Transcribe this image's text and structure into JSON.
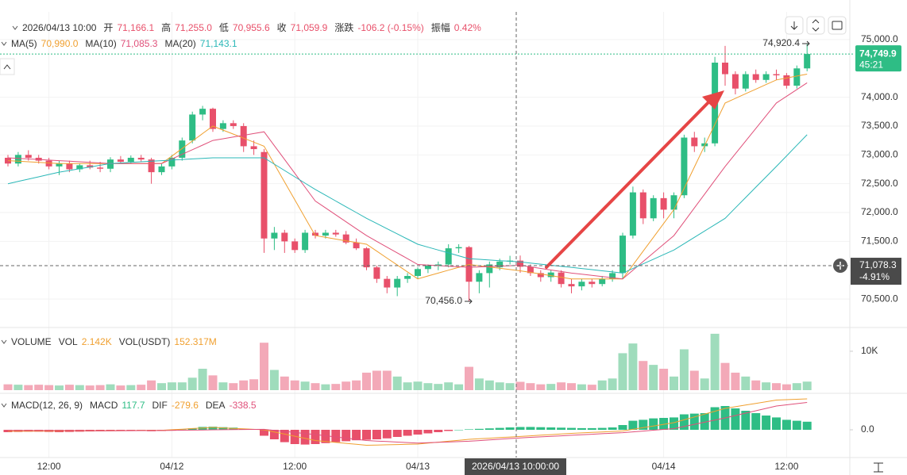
{
  "header": {
    "time": "2026/04/13 10:00",
    "items": [
      {
        "label": "开",
        "value": "71,166.1"
      },
      {
        "label": "高",
        "value": "71,255.0"
      },
      {
        "label": "低",
        "value": "70,955.6"
      },
      {
        "label": "收",
        "value": "71,059.9"
      },
      {
        "label": "涨跌",
        "value": "-106.2 (-0.15%)"
      },
      {
        "label": "振幅",
        "value": "0.42%"
      }
    ]
  },
  "chart_data": [
    {
      "type": "candlestick",
      "categories": [
        null,
        null,
        null,
        null,
        "12:00",
        null,
        null,
        null,
        null,
        null,
        null,
        null,
        null,
        null,
        null,
        null,
        "04/12",
        null,
        null,
        null,
        null,
        null,
        null,
        null,
        null,
        null,
        null,
        null,
        "12:00",
        null,
        null,
        null,
        null,
        null,
        null,
        null,
        null,
        null,
        null,
        null,
        "04/13",
        null,
        null,
        null,
        null,
        null,
        null,
        null,
        null,
        null,
        null,
        null,
        null,
        null,
        null,
        null,
        null,
        null,
        null,
        null,
        null,
        null,
        null,
        null,
        "04/14",
        null,
        null,
        null,
        null,
        null,
        null,
        null,
        null,
        null,
        null,
        null,
        "12:00",
        null,
        null
      ],
      "open": [
        72950,
        72850,
        73000,
        72950,
        72900,
        72800,
        72850,
        72750,
        72820,
        72780,
        72760,
        72920,
        72880,
        72950,
        72920,
        72700,
        72800,
        72950,
        73250,
        73700,
        73800,
        73450,
        73550,
        73500,
        73150,
        73050,
        71550,
        71650,
        71500,
        71350,
        71650,
        71600,
        71650,
        71620,
        71480,
        71380,
        71050,
        70850,
        70700,
        70850,
        70900,
        71020,
        71080,
        71100,
        71380,
        71400,
        70800,
        70950,
        71050,
        71150,
        71166.1,
        71060,
        70950,
        70880,
        70960,
        70760,
        70720,
        70800,
        70760,
        70850,
        70950,
        71600,
        72350,
        71900,
        72250,
        72050,
        72300,
        73300,
        73150,
        73200,
        74600,
        74400,
        74150,
        74400,
        74300,
        74400,
        74380,
        74200,
        74500
      ],
      "high": [
        73000,
        73050,
        73080,
        73000,
        72950,
        72900,
        72900,
        72850,
        72900,
        72880,
        72960,
        72980,
        72990,
        73000,
        72950,
        72850,
        73000,
        73300,
        73750,
        73850,
        73820,
        73600,
        73600,
        73550,
        73250,
        73100,
        71750,
        71700,
        71550,
        71700,
        71700,
        71700,
        71700,
        71680,
        71550,
        71400,
        71080,
        70900,
        70900,
        70950,
        71050,
        71100,
        71150,
        71450,
        71450,
        71420,
        71000,
        71150,
        71200,
        71250,
        71255,
        71100,
        71000,
        71000,
        71000,
        70850,
        70850,
        70850,
        70900,
        71000,
        71650,
        72450,
        72400,
        72300,
        72350,
        72350,
        73350,
        73400,
        73300,
        74700,
        74890,
        74450,
        74450,
        74480,
        74450,
        74480,
        74420,
        74550,
        74920.4
      ],
      "low": [
        72800,
        72800,
        72900,
        72850,
        72750,
        72650,
        72700,
        72700,
        72750,
        72700,
        72700,
        72850,
        72850,
        72880,
        72500,
        72650,
        72750,
        72900,
        73200,
        73600,
        73400,
        73400,
        73450,
        73050,
        73000,
        71300,
        71350,
        71300,
        71300,
        71300,
        71550,
        71550,
        71580,
        71450,
        71350,
        71000,
        70780,
        70600,
        70550,
        70780,
        70850,
        70950,
        71000,
        71050,
        71300,
        70456,
        70600,
        70700,
        71000,
        71100,
        70955.6,
        70900,
        70800,
        70800,
        70700,
        70600,
        70650,
        70700,
        70720,
        70800,
        70850,
        71550,
        71800,
        71850,
        71900,
        71900,
        72250,
        73050,
        73050,
        73150,
        74200,
        74050,
        74100,
        74250,
        74250,
        74300,
        74150,
        74150,
        74450
      ],
      "close": [
        72850,
        73000,
        72950,
        72900,
        72800,
        72850,
        72750,
        72820,
        72780,
        72760,
        72920,
        72880,
        72950,
        72920,
        72700,
        72800,
        72950,
        73250,
        73700,
        73800,
        73450,
        73550,
        73500,
        73150,
        73100,
        71550,
        71650,
        71500,
        71350,
        71650,
        71600,
        71650,
        71620,
        71480,
        71380,
        71050,
        70850,
        70700,
        70850,
        70900,
        71020,
        71080,
        71100,
        71380,
        71400,
        70800,
        70950,
        71100,
        71150,
        71166.1,
        71059.9,
        70950,
        70880,
        70960,
        70760,
        70720,
        70800,
        70760,
        70850,
        70950,
        71600,
        72350,
        71900,
        72250,
        72050,
        72300,
        73300,
        73150,
        73200,
        74600,
        74400,
        74150,
        74400,
        74300,
        74400,
        74380,
        74200,
        74500,
        74749.9
      ],
      "up_color": "#2ebd85",
      "down_color": "#e8506a",
      "lines": [
        {
          "name": "MA(5)",
          "value_label": "70,990.0",
          "color": "#f0a030",
          "values": [
            72900,
            72890,
            72880,
            72870,
            72860,
            72850,
            72850,
            72850,
            72850,
            72850,
            72850,
            72850,
            72850,
            72850,
            72850,
            72850,
            72980,
            73110,
            73240,
            73370,
            73500,
            73430,
            73360,
            73290,
            73220,
            73150,
            72840,
            72530,
            72220,
            71910,
            71600,
            71570,
            71540,
            71510,
            71480,
            71450,
            71330,
            71210,
            71090,
            70970,
            70850,
            70900,
            70950,
            71000,
            71050,
            71100,
            71078,
            71056,
            71034,
            71012,
            70990,
            70962,
            70934,
            70906,
            70878,
            70850,
            70850,
            70850,
            70850,
            70850,
            70850,
            71090,
            71330,
            71570,
            71810,
            72050,
            72420,
            72790,
            73160,
            73530,
            73900,
            73980,
            74060,
            74140,
            74220,
            74300,
            74333,
            74367,
            74400
          ]
        },
        {
          "name": "MA(10)",
          "value_label": "71,085.3",
          "color": "#e0507a",
          "values": [
            72950,
            72940,
            72930,
            72920,
            72910,
            72900,
            72890,
            72880,
            72870,
            72860,
            72850,
            72850,
            72850,
            72850,
            72850,
            72850,
            72930,
            73010,
            73090,
            73170,
            73250,
            73280,
            73310,
            73340,
            73370,
            73400,
            73160,
            72920,
            72680,
            72440,
            72200,
            72080,
            71960,
            71840,
            71720,
            71600,
            71500,
            71400,
            71300,
            71200,
            71100,
            71090,
            71080,
            71070,
            71060,
            71050,
            71057,
            71064,
            71071,
            71078,
            71085.3,
            71058,
            71031,
            71004,
            70977,
            70950,
            70930,
            70910,
            70890,
            70870,
            70850,
            71000,
            71150,
            71300,
            71450,
            71600,
            71840,
            72080,
            72320,
            72560,
            72800,
            73020,
            73240,
            73460,
            73680,
            73900,
            74017,
            74133,
            74250
          ]
        },
        {
          "name": "MA(20)",
          "value_label": "71,143.1",
          "color": "#2ab7b7",
          "values": [
            72500,
            72540,
            72580,
            72620,
            72660,
            72700,
            72730,
            72760,
            72790,
            72820,
            72850,
            72860,
            72870,
            72880,
            72890,
            72900,
            72910,
            72920,
            72930,
            72940,
            72950,
            72950,
            72950,
            72950,
            72950,
            72950,
            72840,
            72730,
            72620,
            72510,
            72400,
            72300,
            72200,
            72100,
            72000,
            71900,
            71810,
            71720,
            71630,
            71540,
            71450,
            71400,
            71350,
            71300,
            71250,
            71200,
            71189,
            71177,
            71166,
            71154,
            71143.1,
            71124,
            71105,
            71086,
            71067,
            71050,
            71030,
            71010,
            70990,
            70970,
            70950,
            71030,
            71110,
            71190,
            71270,
            71350,
            71460,
            71570,
            71680,
            71790,
            71900,
            72080,
            72260,
            72440,
            72620,
            72800,
            72983,
            73167,
            73350
          ]
        }
      ],
      "ylim": [
        70020,
        75480
      ],
      "yticks": [
        {
          "value": 75000,
          "label": "75,000.0"
        },
        {
          "value": 74000,
          "label": "74,000.0"
        },
        {
          "value": 73500,
          "label": "73,500.0"
        },
        {
          "value": 73000,
          "label": "73,000.0"
        },
        {
          "value": 72500,
          "label": "72,500.0"
        },
        {
          "value": 72000,
          "label": "72,000.0"
        },
        {
          "value": 71500,
          "label": "71,500.0"
        },
        {
          "value": 70500,
          "label": "70,500.0"
        }
      ],
      "grid": true,
      "high_label": "74,920.4",
      "low_label": "70,456.0",
      "last_price": {
        "value": 74749.9,
        "label": "74,749.9",
        "countdown": "45:21"
      },
      "crosshair": {
        "value": 71078.3,
        "label": "71,078.3",
        "change": "-4.91%",
        "time": "2026/04/13 10:00:00"
      }
    },
    {
      "type": "bar",
      "title": "VOLUME",
      "legend": [
        {
          "label": "VOL",
          "value": "2.142K"
        },
        {
          "label": "VOL(USDT)",
          "value": "152.317M"
        }
      ],
      "values": [
        1500,
        1400,
        1300,
        1400,
        1300,
        1200,
        1400,
        1300,
        1200,
        1300,
        1500,
        1200,
        1300,
        1400,
        2500,
        1800,
        2000,
        2000,
        3200,
        5500,
        3800,
        2000,
        1800,
        2500,
        2800,
        12200,
        5200,
        3500,
        2500,
        2200,
        1800,
        1500,
        1600,
        2200,
        2500,
        4500,
        5000,
        5000,
        3500,
        2000,
        2200,
        1800,
        1600,
        2000,
        1500,
        6000,
        3000,
        2500,
        2000,
        1800,
        2142,
        1800,
        1500,
        1600,
        2000,
        1800,
        1500,
        1400,
        2500,
        3000,
        9500,
        12000,
        7500,
        6500,
        5500,
        3500,
        10500,
        5000,
        3000,
        14500,
        7000,
        4500,
        3500,
        2500,
        2000,
        1800,
        1500,
        1800,
        2200
      ],
      "up_color": "#9fdcbc",
      "down_color": "#f3a9b8",
      "ylim": [
        0,
        15700
      ],
      "yticks": [
        {
          "value": 10000,
          "label": "10K"
        }
      ]
    },
    {
      "type": "macd",
      "title": "MACD(12, 26, 9)",
      "histogram_name": "MACD",
      "histogram_label": "117.7",
      "histogram": [
        -100,
        -90,
        -80,
        -80,
        -90,
        -100,
        -90,
        -80,
        -70,
        -60,
        -50,
        -50,
        -40,
        -40,
        -60,
        -50,
        -30,
        10,
        60,
        120,
        130,
        110,
        90,
        50,
        20,
        -250,
        -400,
        -520,
        -600,
        -620,
        -600,
        -560,
        -520,
        -480,
        -440,
        -420,
        -400,
        -360,
        -300,
        -250,
        -200,
        -150,
        -100,
        -50,
        0,
        20,
        40,
        60,
        80,
        100,
        117.7,
        120,
        110,
        100,
        90,
        80,
        70,
        70,
        80,
        100,
        200,
        380,
        420,
        480,
        500,
        520,
        650,
        680,
        700,
        950,
        1000,
        900,
        800,
        700,
        600,
        520,
        420,
        380,
        340
      ],
      "up_color": "#2ebd85",
      "down_color": "#e8506a",
      "lines": [
        {
          "name": "DIF",
          "value_label": "-279.6",
          "color": "#f0a030",
          "values": [
            -60,
            -58,
            -56,
            -54,
            -52,
            -50,
            -48,
            -46,
            -44,
            -42,
            -40,
            -36,
            -32,
            -28,
            -24,
            -20,
            4,
            28,
            52,
            76,
            100,
            80,
            60,
            40,
            20,
            0,
            -90,
            -180,
            -270,
            -360,
            -450,
            -490,
            -530,
            -570,
            -610,
            -650,
            -640,
            -630,
            -620,
            -610,
            -600,
            -560,
            -520,
            -480,
            -440,
            -400,
            -376,
            -352,
            -328,
            -304,
            -279.6,
            -254,
            -228,
            -202,
            -176,
            -150,
            -130,
            -110,
            -90,
            -70,
            -50,
            20,
            90,
            160,
            230,
            300,
            420,
            540,
            660,
            780,
            900,
            970,
            1040,
            1110,
            1180,
            1250,
            1267,
            1284,
            1300
          ]
        },
        {
          "name": "DEA",
          "value_label": "-338.5",
          "color": "#e0507a",
          "values": [
            -30,
            -31,
            -32,
            -33,
            -34,
            -35,
            -36,
            -37,
            -38,
            -39,
            -40,
            -38,
            -36,
            -34,
            -32,
            -30,
            -24,
            -18,
            -12,
            -6,
            0,
            4,
            8,
            12,
            16,
            20,
            -24,
            -68,
            -112,
            -156,
            -200,
            -250,
            -300,
            -350,
            -400,
            -450,
            -472,
            -494,
            -516,
            -538,
            -560,
            -544,
            -528,
            -512,
            -496,
            -480,
            -452,
            -424,
            -396,
            -368,
            -338.5,
            -316,
            -295,
            -273,
            -252,
            -230,
            -208,
            -186,
            -164,
            -142,
            -120,
            -86,
            -52,
            -18,
            16,
            50,
            140,
            230,
            320,
            410,
            500,
            600,
            700,
            800,
            900,
            1000,
            1050,
            1100,
            1150
          ]
        }
      ],
      "ylim": [
        -1100,
        1400
      ],
      "yticks": [
        {
          "value": 0,
          "label": "0.0"
        }
      ]
    }
  ]
}
